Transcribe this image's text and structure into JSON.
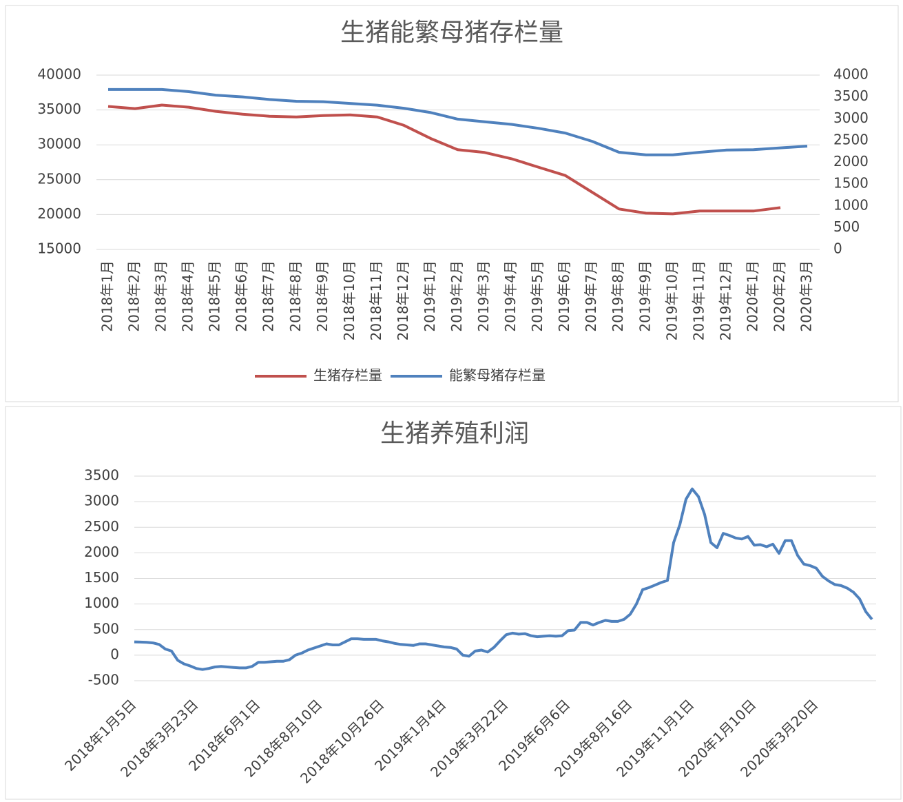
{
  "chart_data": [
    {
      "type": "line",
      "title": "生猪能繁母猪存栏量",
      "categories": [
        "2018年1月",
        "2018年2月",
        "2018年3月",
        "2018年4月",
        "2018年5月",
        "2018年6月",
        "2018年7月",
        "2018年8月",
        "2018年9月",
        "2018年10月",
        "2018年11月",
        "2018年12月",
        "2019年1月",
        "2019年2月",
        "2019年3月",
        "2019年4月",
        "2019年5月",
        "2019年6月",
        "2019年7月",
        "2019年8月",
        "2019年9月",
        "2019年10月",
        "2019年11月",
        "2019年12月",
        "2020年1月",
        "2020年2月",
        "2020年3月"
      ],
      "series": [
        {
          "name": "生猪存栏量",
          "color": "#c0504d",
          "values": [
            35500,
            35200,
            35700,
            35400,
            34800,
            34400,
            34100,
            34000,
            34200,
            34300,
            34000,
            32800,
            30900,
            29300,
            28900,
            28000,
            26800,
            25600,
            23200,
            20800,
            20200,
            20100,
            20500,
            20500,
            20500,
            21000,
            null
          ]
        },
        {
          "name": "能繁母猪存栏量",
          "color": "#4f81bd",
          "axis": "y2",
          "values": [
            3670,
            3670,
            3670,
            3620,
            3540,
            3500,
            3440,
            3400,
            3390,
            3350,
            3310,
            3240,
            3140,
            2990,
            2930,
            2870,
            2780,
            2670,
            2480,
            2230,
            2170,
            2170,
            2230,
            2280,
            2290,
            2330,
            2370
          ]
        }
      ],
      "ylim": [
        15000,
        40000
      ],
      "yticks": [
        15000,
        20000,
        25000,
        30000,
        35000,
        40000
      ],
      "y2lim": [
        0,
        4000
      ],
      "y2ticks": [
        0,
        500,
        1000,
        1500,
        2000,
        2500,
        3000,
        3500,
        4000
      ],
      "grid": true,
      "legend": "bottom"
    },
    {
      "type": "line",
      "title": "生猪养殖利润",
      "categories": [
        "2018年1月5日",
        null,
        null,
        null,
        null,
        null,
        null,
        null,
        null,
        null,
        "2018年3月23日",
        null,
        null,
        null,
        null,
        null,
        null,
        null,
        null,
        null,
        "2018年6月1日",
        null,
        null,
        null,
        null,
        null,
        null,
        null,
        null,
        null,
        "2018年8月10日",
        null,
        null,
        null,
        null,
        null,
        null,
        null,
        null,
        null,
        "2018年10月26日",
        null,
        null,
        null,
        null,
        null,
        null,
        null,
        null,
        null,
        "2019年1月4日",
        null,
        null,
        null,
        null,
        null,
        null,
        null,
        null,
        null,
        "2019年3月22日",
        null,
        null,
        null,
        null,
        null,
        null,
        null,
        null,
        null,
        "2019年6月6日",
        null,
        null,
        null,
        null,
        null,
        null,
        null,
        null,
        null,
        "2019年8月16日",
        null,
        null,
        null,
        null,
        null,
        null,
        null,
        null,
        null,
        "2019年11月1日",
        null,
        null,
        null,
        null,
        null,
        null,
        null,
        null,
        null,
        "2020年1月10日",
        null,
        null,
        null,
        null,
        null,
        null,
        null,
        null,
        null,
        "2020年3月20日",
        null,
        null,
        null,
        null,
        null,
        null,
        null,
        null,
        null
      ],
      "series": [
        {
          "name": "生猪养殖利润",
          "color": "#4f81bd",
          "values": [
            260,
            255,
            250,
            240,
            210,
            120,
            80,
            -100,
            -170,
            -210,
            -260,
            -280,
            -260,
            -230,
            -220,
            -230,
            -240,
            -250,
            -250,
            -220,
            -140,
            -140,
            -130,
            -120,
            -120,
            -90,
            0,
            40,
            100,
            140,
            180,
            220,
            200,
            200,
            260,
            320,
            320,
            310,
            310,
            310,
            280,
            260,
            230,
            210,
            200,
            190,
            220,
            220,
            200,
            180,
            160,
            150,
            120,
            0,
            -20,
            80,
            100,
            60,
            150,
            280,
            400,
            430,
            410,
            420,
            380,
            360,
            370,
            380,
            370,
            380,
            480,
            490,
            640,
            640,
            590,
            640,
            680,
            660,
            660,
            700,
            800,
            1000,
            1280,
            1320,
            1370,
            1420,
            1460,
            2200,
            2550,
            3050,
            3250,
            3100,
            2750,
            2200,
            2100,
            2380,
            2340,
            2290,
            2270,
            2320,
            2150,
            2160,
            2120,
            2170,
            1990,
            2240,
            2240,
            1950,
            1780,
            1750,
            1700,
            1540,
            1450,
            1380,
            1360,
            1310,
            1230,
            1100,
            850,
            700
          ]
        }
      ],
      "ylim": [
        -500,
        3500
      ],
      "yticks": [
        -500,
        0,
        500,
        1000,
        1500,
        2000,
        2500,
        3000,
        3500
      ],
      "grid": true
    }
  ]
}
